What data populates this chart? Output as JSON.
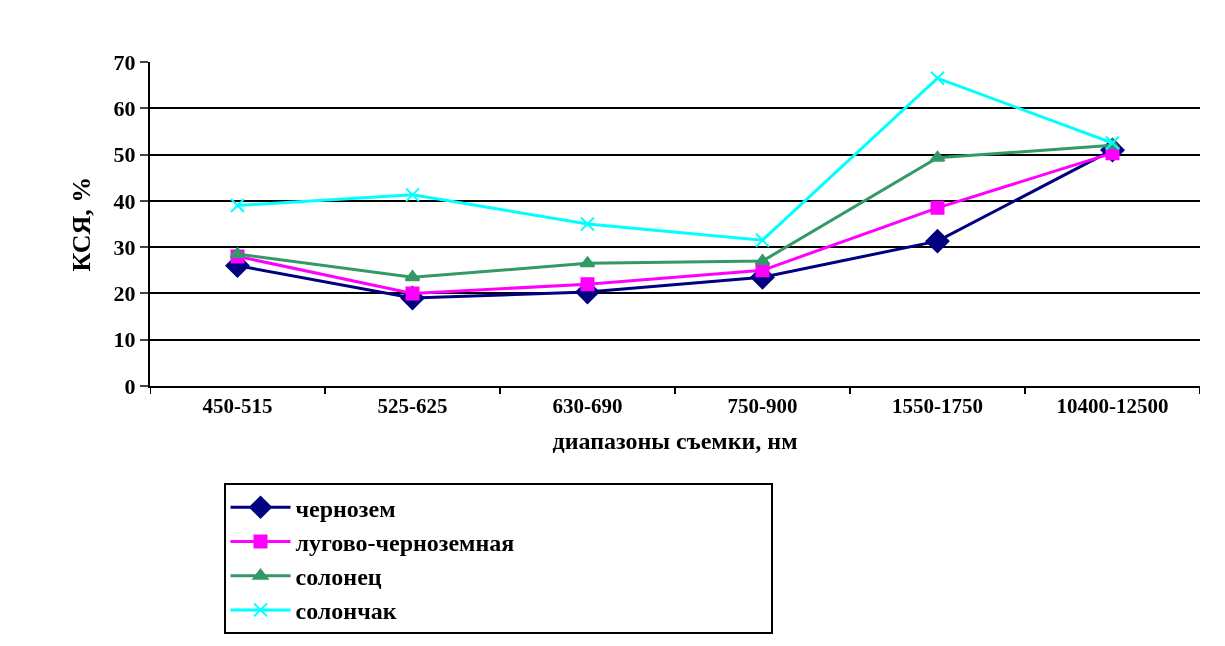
{
  "chart_data": {
    "type": "line",
    "xlabel": "диапазоны съемки, нм",
    "ylabel": "КСЯ, %",
    "categories": [
      "450-515",
      "525-625",
      "630-690",
      "750-900",
      "1550-1750",
      "10400-12500"
    ],
    "series": [
      {
        "name": "чернозем",
        "color": "#000080",
        "marker": "diamond",
        "values": [
          26,
          19,
          20.3,
          23.5,
          31.3,
          51
        ]
      },
      {
        "name": "лугово-черноземная",
        "color": "#ff00ff",
        "marker": "square",
        "values": [
          28,
          20,
          22,
          25,
          38.5,
          50.3
        ]
      },
      {
        "name": "солонец",
        "color": "#339966",
        "marker": "triangle",
        "values": [
          28.5,
          23.5,
          26.5,
          27,
          49.3,
          52
        ]
      },
      {
        "name": "солончак",
        "color": "#00ffff",
        "marker": "cross",
        "values": [
          39,
          41.3,
          35,
          31.5,
          66.5,
          52.5
        ]
      }
    ],
    "ylim": [
      0,
      70
    ],
    "yticks": [
      0,
      10,
      20,
      30,
      40,
      50,
      60,
      70
    ],
    "grid": "y",
    "legend": "bottom"
  }
}
